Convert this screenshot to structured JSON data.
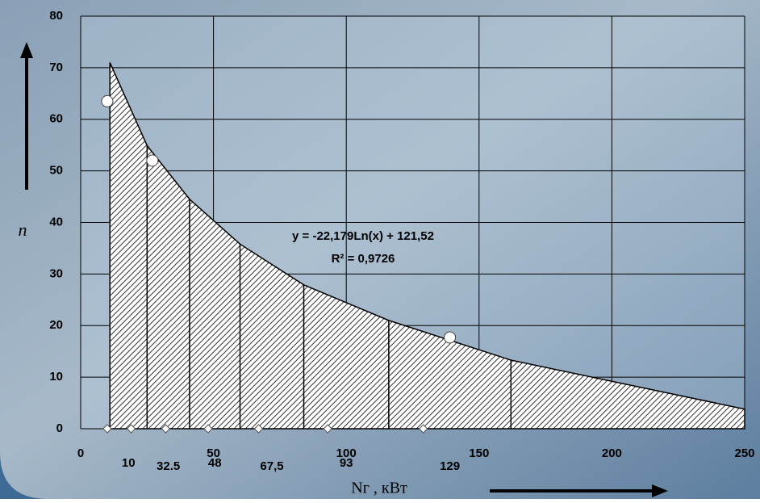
{
  "chart_data": {
    "type": "area",
    "x_label": "Nг , кВт",
    "y_label": "n",
    "xlim": [
      0,
      250
    ],
    "xticks": [
      0,
      50,
      100,
      150,
      200,
      250
    ],
    "ylim": [
      0,
      80
    ],
    "yticks": [
      0,
      10,
      20,
      30,
      40,
      50,
      60,
      70,
      80
    ],
    "grid": true,
    "x": [
      11,
      25,
      41,
      60,
      84,
      116,
      162,
      250
    ],
    "values": [
      71,
      54.9,
      44.5,
      35.8,
      27.9,
      21,
      13.3,
      3.8
    ],
    "interval_labels": [
      "10",
      "32.5",
      "48",
      "67,5",
      "93",
      "129"
    ],
    "points": {
      "x": [
        10,
        27,
        139
      ],
      "y": [
        63.5,
        52,
        17.7
      ]
    },
    "zero_markers": {
      "x": [
        10,
        19,
        32,
        48,
        67,
        93,
        129
      ],
      "y": [
        0,
        0,
        0,
        0,
        0,
        0,
        0
      ]
    },
    "equation": "y = -22,179Ln(x) + 121,52",
    "r_squared": "R² = 0,9726"
  }
}
